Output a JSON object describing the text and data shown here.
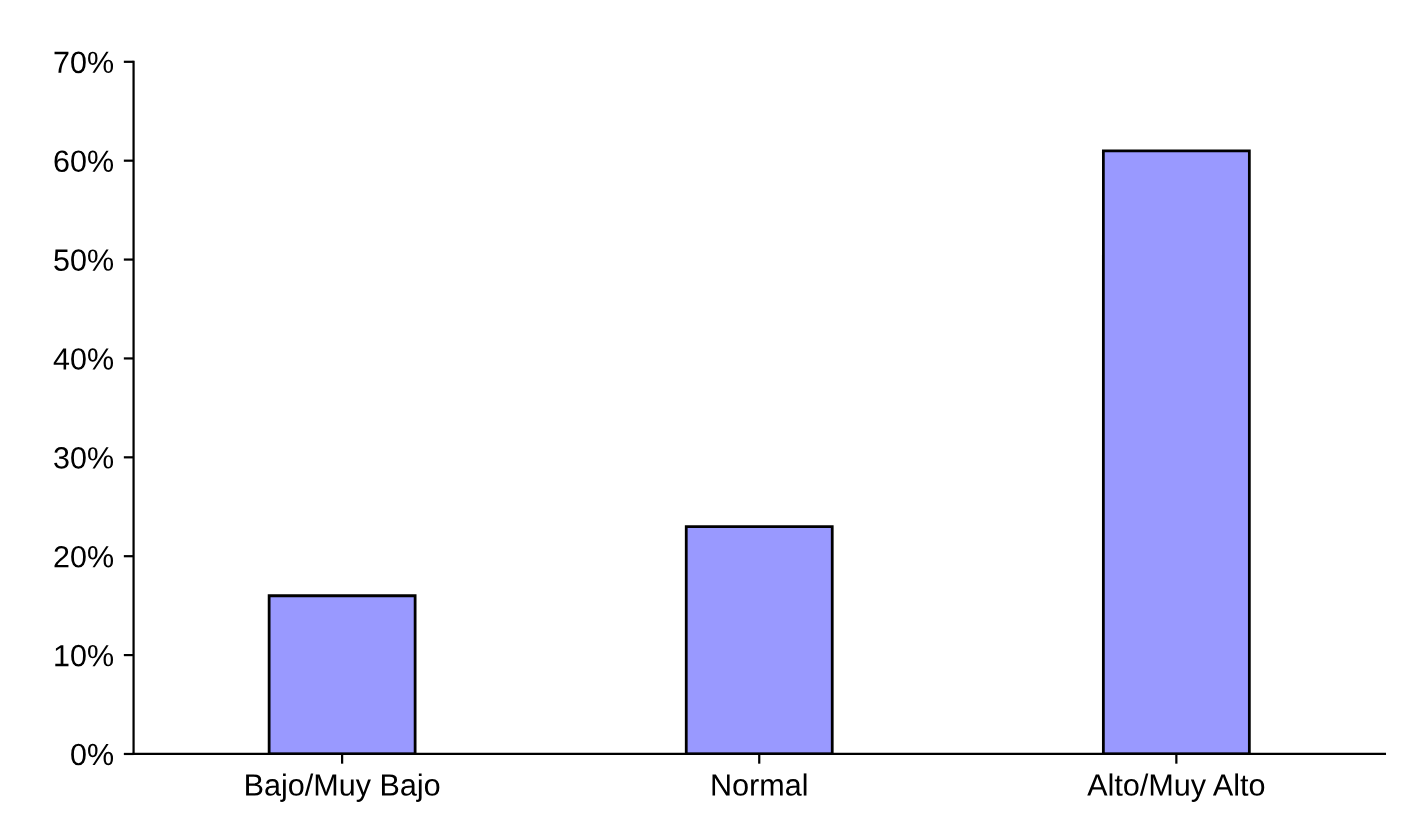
{
  "chart_data": {
    "type": "bar",
    "categories": [
      "Bajo/Muy Bajo",
      "Normal",
      "Alto/Muy Alto"
    ],
    "values": [
      16,
      23,
      61
    ],
    "color": "#9999ff",
    "ylim": [
      0,
      70
    ],
    "yticks": [
      {
        "value": 0,
        "label": "0%"
      },
      {
        "value": 10,
        "label": "10%"
      },
      {
        "value": 20,
        "label": "20%"
      },
      {
        "value": 30,
        "label": "30%"
      },
      {
        "value": 40,
        "label": "40%"
      },
      {
        "value": 50,
        "label": "50%"
      },
      {
        "value": 60,
        "label": "60%"
      },
      {
        "value": 70,
        "label": "70%"
      }
    ],
    "grid": false,
    "legend": false
  }
}
